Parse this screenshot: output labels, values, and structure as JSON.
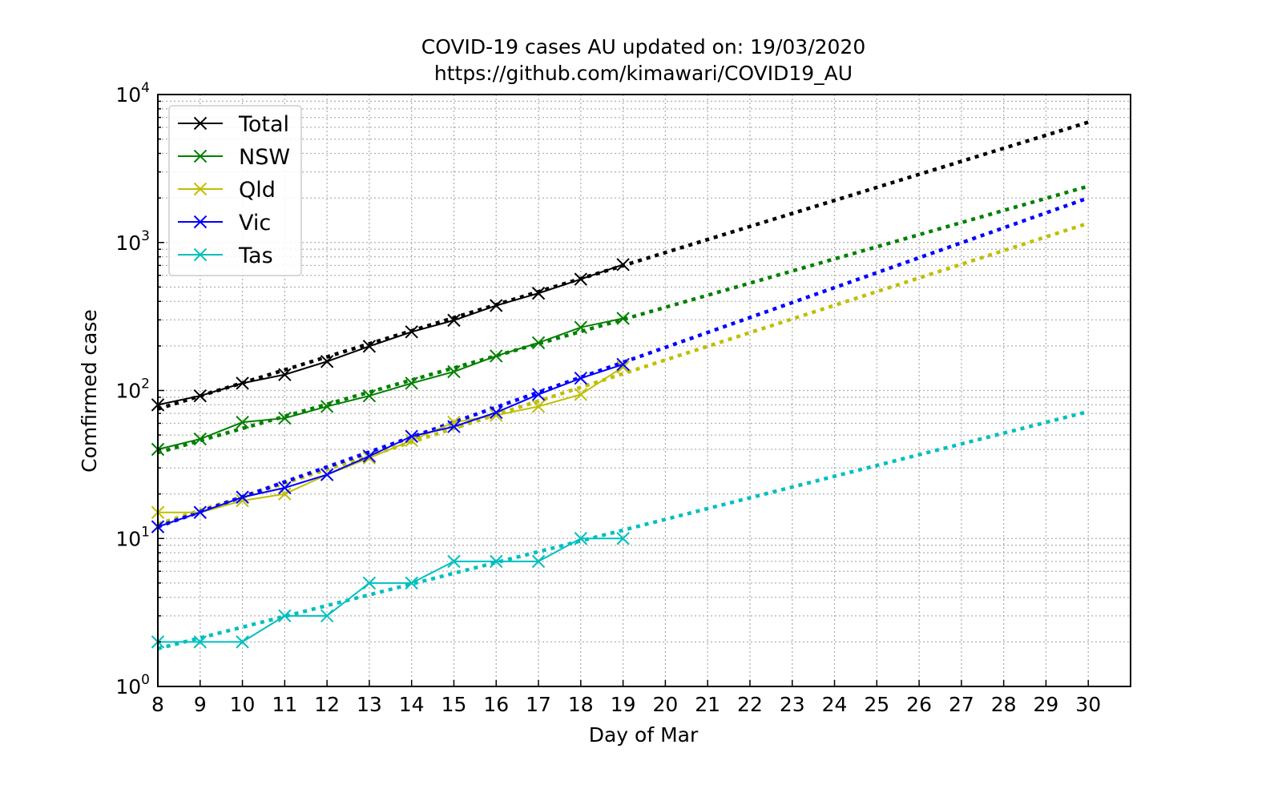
{
  "chart_data": {
    "type": "line",
    "title_lines": [
      "COVID-19 cases AU updated on: 19/03/2020",
      "https://github.com/kimawari/COVID19_AU"
    ],
    "xlabel": "Day of Mar",
    "ylabel": "Comfirmed case",
    "x_ticks": [
      8,
      9,
      10,
      11,
      12,
      13,
      14,
      15,
      16,
      17,
      18,
      19,
      20,
      21,
      22,
      23,
      24,
      25,
      26,
      27,
      28,
      29,
      30
    ],
    "xlim": [
      8,
      31
    ],
    "y_scale": "log",
    "ylim": [
      1,
      10000
    ],
    "y_tick_labels": [
      {
        "base": "10",
        "exp": "0",
        "value": 1
      },
      {
        "base": "10",
        "exp": "1",
        "value": 10
      },
      {
        "base": "10",
        "exp": "2",
        "value": 100
      },
      {
        "base": "10",
        "exp": "3",
        "value": 1000
      },
      {
        "base": "10",
        "exp": "4",
        "value": 10000
      }
    ],
    "grid": true,
    "legend_position": "top-left",
    "x": [
      8,
      9,
      10,
      11,
      12,
      13,
      14,
      15,
      16,
      17,
      18,
      19
    ],
    "series": [
      {
        "name": "Total",
        "color": "#000000",
        "marker": "x",
        "values": [
          80,
          92,
          112,
          128,
          157,
          199,
          249,
          298,
          375,
          454,
          565,
          709
        ],
        "trend": {
          "x": [
            8,
            30
          ],
          "y": [
            75,
            6500
          ]
        }
      },
      {
        "name": "NSW",
        "color": "#008000",
        "marker": "x",
        "values": [
          40,
          47,
          61,
          65,
          78,
          92,
          112,
          134,
          171,
          210,
          267,
          307
        ],
        "trend": {
          "x": [
            8,
            30
          ],
          "y": [
            38,
            2400
          ]
        }
      },
      {
        "name": "Qld",
        "color": "#bfbf00",
        "marker": "x",
        "values": [
          15,
          15,
          18,
          20,
          27,
          35,
          46,
          61,
          68,
          78,
          94,
          144
        ],
        "trend": {
          "x": [
            8,
            30
          ],
          "y": [
            12.5,
            1350
          ]
        }
      },
      {
        "name": "Vic",
        "color": "#0000ff",
        "marker": "x",
        "values": [
          12,
          15,
          19,
          22,
          27,
          36,
          49,
          57,
          71,
          94,
          121,
          150
        ],
        "trend": {
          "x": [
            8,
            30
          ],
          "y": [
            12,
            2000
          ]
        }
      },
      {
        "name": "Tas",
        "color": "#00bfbf",
        "marker": "x",
        "values": [
          2,
          2,
          2,
          3,
          3,
          5,
          5,
          7,
          7,
          7,
          10,
          10
        ],
        "trend": {
          "x": [
            8,
            30
          ],
          "y": [
            1.8,
            72
          ]
        }
      }
    ]
  }
}
